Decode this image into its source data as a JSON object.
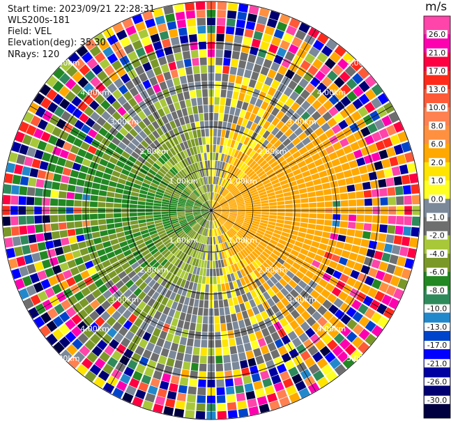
{
  "header": {
    "start_time": "Start time: 2023/09/21 22:28:31",
    "instrument": "WLS200s-181",
    "field": "Field: VEL",
    "elevation": "Elevation(deg): 35.30",
    "nrays": "NRays: 120"
  },
  "chart_data": {
    "type": "heatmap",
    "projection": "polar-ppi",
    "field": "VEL",
    "units": "m/s",
    "n_rays": 120,
    "range_ring_labels": [
      "1.00km",
      "2.00km",
      "3.00km",
      "4.00km",
      "5.00km"
    ],
    "colorbar": {
      "label": "m/s",
      "ticks": [
        "26.0",
        "21.0",
        "17.0",
        "13.0",
        "10.0",
        "8.0",
        "6.0",
        "2.0",
        "1.0",
        "0.0",
        "-1.0",
        "-2.0",
        "-4.0",
        "-6.0",
        "-8.0",
        "-10.0",
        "-13.0",
        "-17.0",
        "-21.0",
        "-26.0",
        "-30.0"
      ],
      "colors": [
        "#ff44aa",
        "#ff00b0",
        "#ff0040",
        "#ff2a1a",
        "#ff5a38",
        "#ff8050",
        "#ff9040",
        "#ffa800",
        "#ffe400",
        "#ffff22",
        "#7a8899",
        "#6e6e6e",
        "#a8c83a",
        "#7a9828",
        "#228822",
        "#2e8a5a",
        "#2288cc",
        "#0044cc",
        "#0000ff",
        "#0000a0",
        "#000070",
        "#000040"
      ]
    },
    "pattern": {
      "positive_side": "east (receding, yellow to orange/red)",
      "negative_side": "west (approaching, green to blue)",
      "near_zero": "north-south band (gray)"
    }
  }
}
